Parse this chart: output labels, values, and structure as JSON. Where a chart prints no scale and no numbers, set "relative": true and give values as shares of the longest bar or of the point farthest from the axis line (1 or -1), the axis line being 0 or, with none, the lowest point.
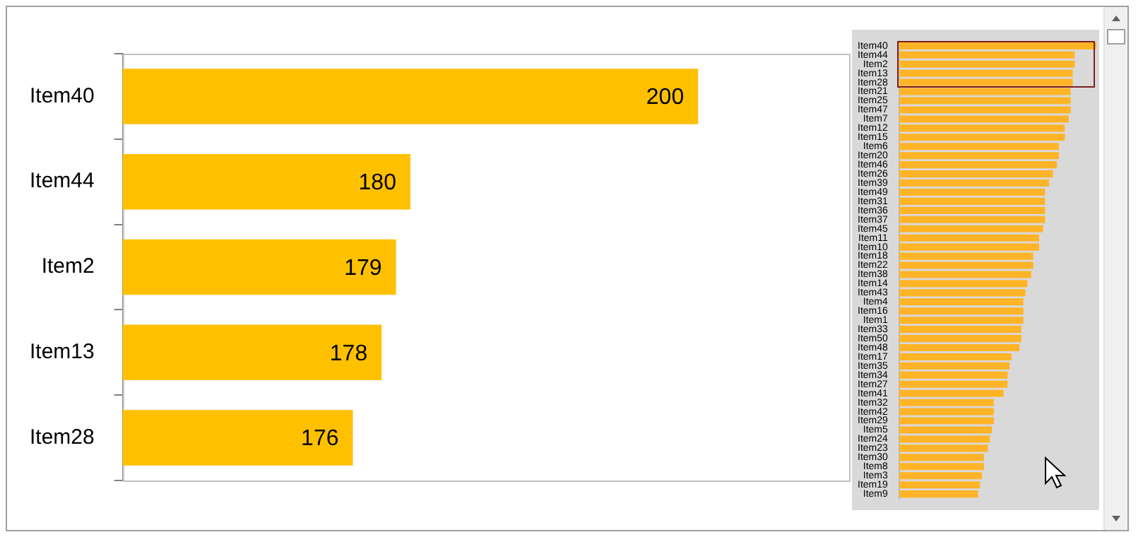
{
  "chart_data": [
    {
      "type": "bar",
      "orientation": "horizontal",
      "categories": [
        "Item40",
        "Item44",
        "Item2",
        "Item13",
        "Item28"
      ],
      "values": [
        200,
        180,
        179,
        178,
        176
      ],
      "color": "#ffc000",
      "xlim": [
        160,
        210.5
      ],
      "data_labels": true,
      "tick_labels": "y",
      "grid": false,
      "legend": false
    },
    {
      "type": "bar",
      "orientation": "horizontal",
      "relative": true,
      "color": "#ffb428",
      "tick_labels": "y",
      "grid": false,
      "legend": false,
      "categories": [
        "Item40",
        "Item44",
        "Item2",
        "Item13",
        "Item28",
        "Item21",
        "Item25",
        "Item47",
        "Item7",
        "Item12",
        "Item15",
        "Item6",
        "Item20",
        "Item46",
        "Item26",
        "Item39",
        "Item49",
        "Item31",
        "Item36",
        "Item37",
        "Item45",
        "Item11",
        "Item10",
        "Item18",
        "Item22",
        "Item38",
        "Item14",
        "Item43",
        "Item4",
        "Item16",
        "Item1",
        "Item33",
        "Item50",
        "Item48",
        "Item17",
        "Item35",
        "Item34",
        "Item27",
        "Item41",
        "Item32",
        "Item42",
        "Item29",
        "Item5",
        "Item24",
        "Item23",
        "Item30",
        "Item8",
        "Item3",
        "Item19",
        "Item9"
      ],
      "values": [
        1,
        0.89,
        0.89,
        0.88,
        0.88,
        0.87,
        0.87,
        0.87,
        0.86,
        0.84,
        0.84,
        0.81,
        0.81,
        0.8,
        0.78,
        0.76,
        0.74,
        0.74,
        0.74,
        0.74,
        0.73,
        0.71,
        0.71,
        0.68,
        0.68,
        0.67,
        0.65,
        0.64,
        0.63,
        0.63,
        0.63,
        0.62,
        0.62,
        0.61,
        0.57,
        0.56,
        0.55,
        0.55,
        0.53,
        0.48,
        0.48,
        0.48,
        0.47,
        0.46,
        0.45,
        0.43,
        0.43,
        0.42,
        0.41,
        0.4
      ]
    }
  ]
}
